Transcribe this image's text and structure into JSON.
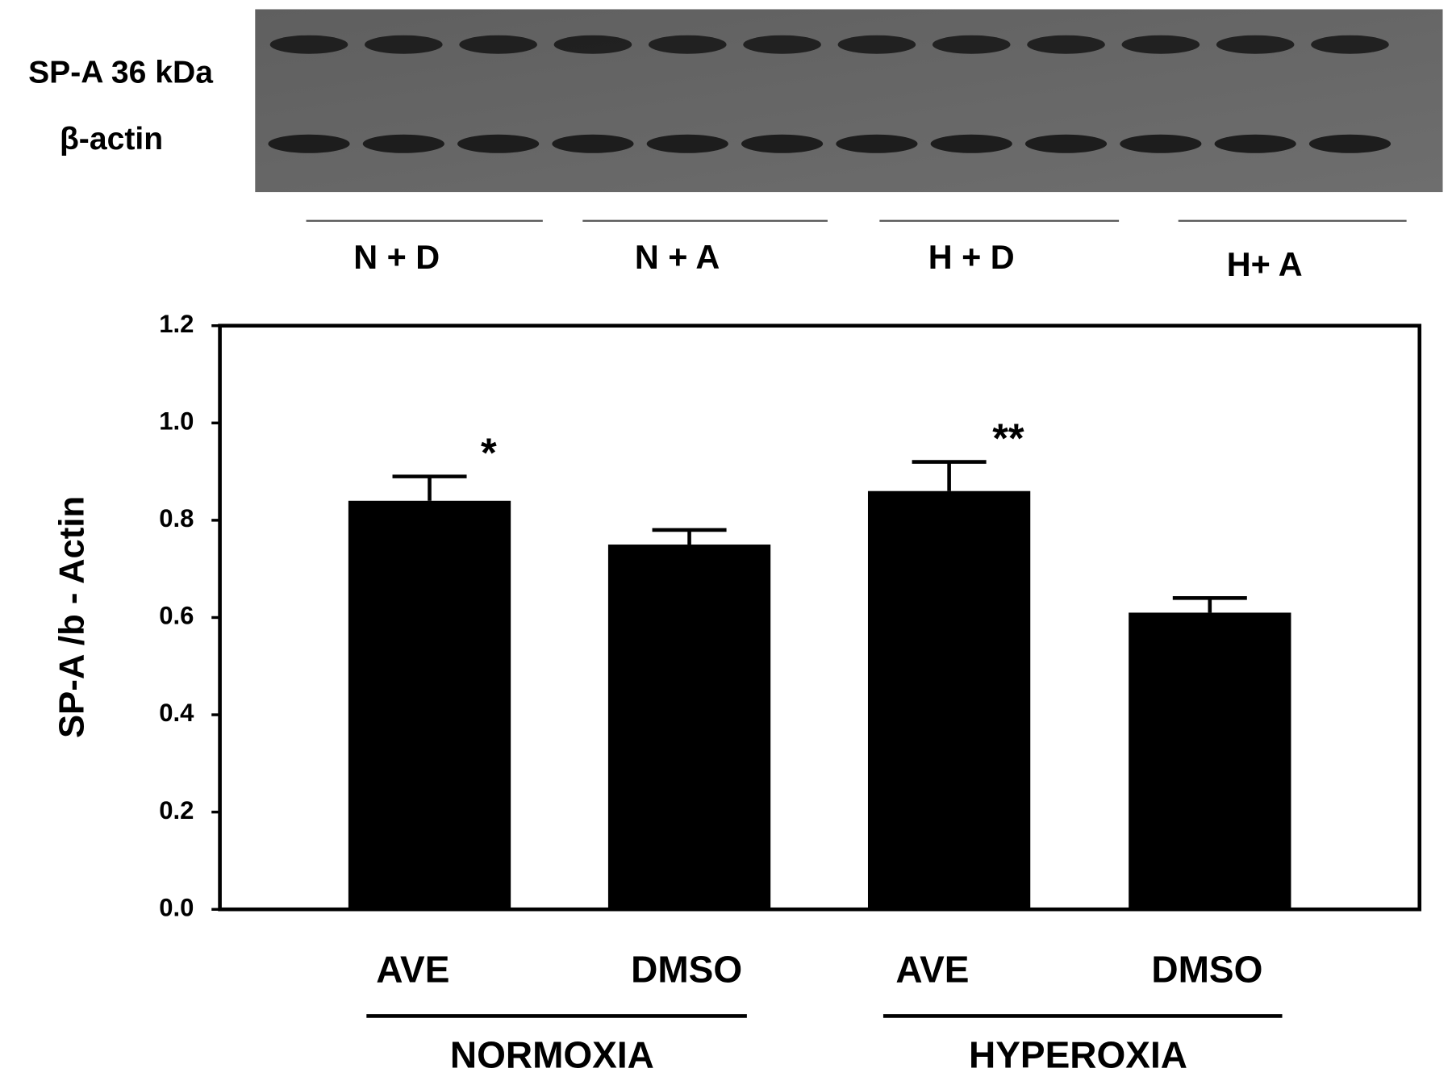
{
  "western_blot": {
    "labels": [
      "SP-A 36 kDa",
      "β-actin"
    ],
    "lanes": [
      "N + D",
      "N + A",
      "H + D",
      "H+ A"
    ]
  },
  "chart_data": {
    "type": "bar",
    "ylabel": "SP-A /b - Actin",
    "categories": [
      "AVE",
      "DMSO",
      "AVE",
      "DMSO"
    ],
    "groups": [
      "NORMOXIA",
      "HYPEROXIA"
    ],
    "values": [
      0.84,
      0.75,
      0.86,
      0.61
    ],
    "errors": [
      0.05,
      0.03,
      0.06,
      0.03
    ],
    "significance": [
      "*",
      null,
      "**",
      null
    ],
    "color": "#000000",
    "ylim": [
      0,
      1.2
    ],
    "yticks": [
      {
        "value": 0,
        "label": "0.0"
      },
      0.2,
      0.4,
      0.6,
      0.8,
      {
        "value": 1,
        "label": "1.0"
      },
      1.2
    ],
    "grid": false
  }
}
